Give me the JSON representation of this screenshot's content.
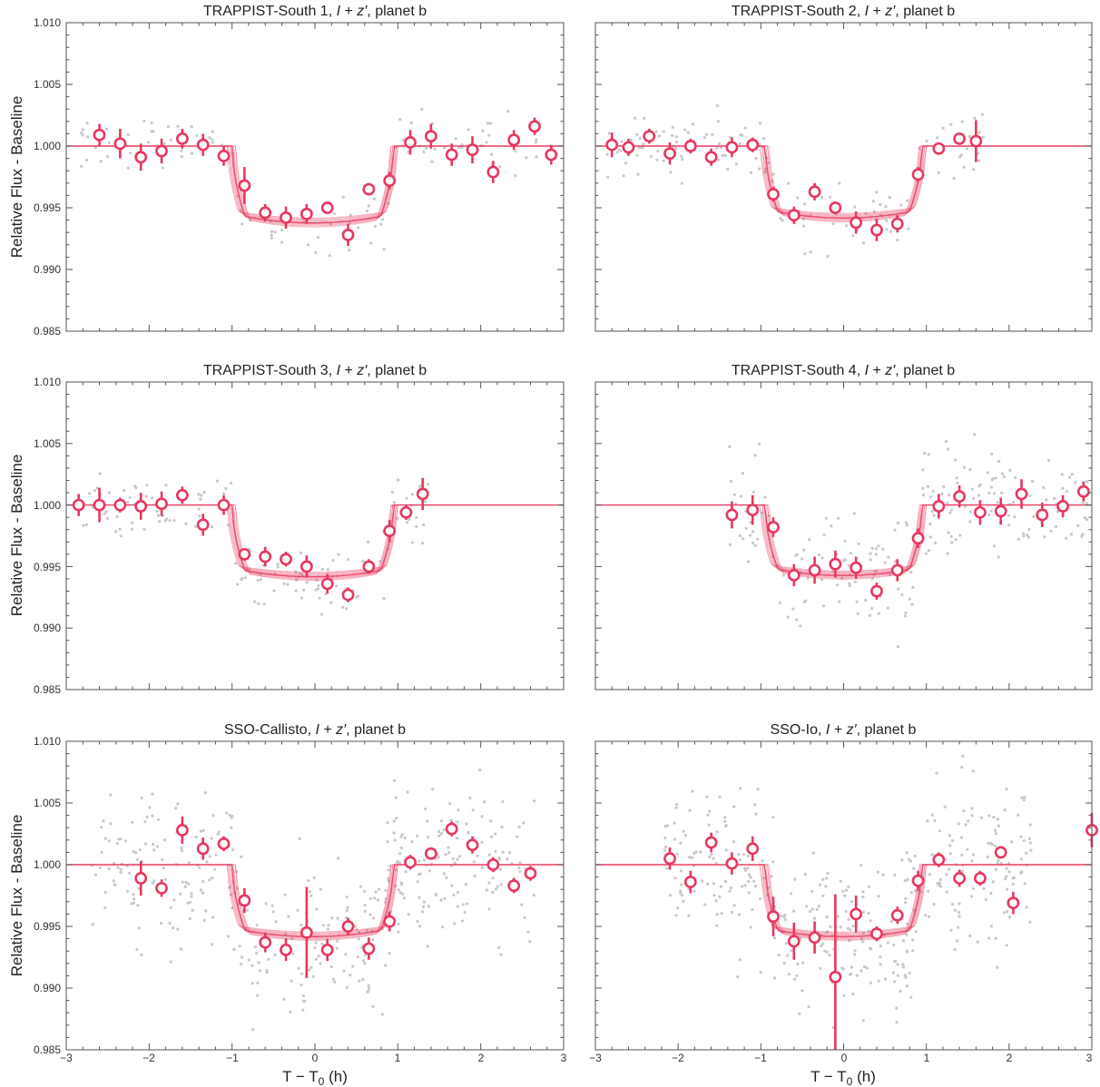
{
  "figure": {
    "ylabel": "Relative Flux - Baseline",
    "xlabel_T": "T",
    "xlabel_minus": "−",
    "xlabel_T0": "T",
    "xlabel_sub0": "0",
    "xlabel_unit": "(h)",
    "accent_color": "#e8375e",
    "scatter_color": "#c8c8c8"
  },
  "chart_data": [
    {
      "type": "scatter",
      "title_prefix": "TRAPPIST-South 1,",
      "title_I": "I",
      "title_plus": "+",
      "title_z": "z′",
      "title_suffix": ", planet b",
      "xlim": [
        -3,
        3
      ],
      "ylim": [
        0.985,
        1.01
      ],
      "x_ticks": [
        -3,
        -2,
        -1,
        0,
        1,
        2,
        3
      ],
      "y_ticks": [
        "0.985",
        "0.990",
        "0.995",
        "1.000",
        "1.005",
        "1.010"
      ],
      "model": {
        "t_ingress": -1.0,
        "t_egress": 0.95,
        "depth": 0.0062
      },
      "binned": {
        "x": [
          -2.6,
          -2.35,
          -2.1,
          -1.85,
          -1.6,
          -1.35,
          -1.1,
          -0.85,
          -0.6,
          -0.35,
          -0.1,
          0.15,
          0.4,
          0.65,
          0.9,
          1.15,
          1.4,
          1.65,
          1.9,
          2.15,
          2.4,
          2.65,
          2.85
        ],
        "y": [
          1.0009,
          1.0002,
          0.9991,
          0.9996,
          1.0006,
          1.0001,
          0.9992,
          0.9968,
          0.9946,
          0.9942,
          0.9945,
          0.995,
          0.9928,
          0.9965,
          0.9972,
          1.0003,
          1.0008,
          0.9993,
          0.9997,
          0.9979,
          1.0005,
          1.0016,
          0.9993
        ],
        "err": [
          0.0009,
          0.0012,
          0.0011,
          0.001,
          0.0008,
          0.0009,
          0.0008,
          0.0015,
          0.0007,
          0.0009,
          0.0008,
          0.0005,
          0.0009,
          0.0005,
          0.0007,
          0.001,
          0.001,
          0.0009,
          0.0011,
          0.0009,
          0.0008,
          0.0007,
          0.0008
        ]
      }
    },
    {
      "type": "scatter",
      "title_prefix": "TRAPPIST-South 2,",
      "title_I": "I",
      "title_plus": "+",
      "title_z": "z′",
      "title_suffix": ", planet b",
      "xlim": [
        -3,
        3
      ],
      "ylim": [
        0.985,
        1.01
      ],
      "x_ticks": [
        -3,
        -2,
        -1,
        0,
        1,
        2,
        3
      ],
      "y_ticks": [
        "0.985",
        "0.990",
        "0.995",
        "1.000",
        "1.005",
        "1.010"
      ],
      "model": {
        "t_ingress": -0.95,
        "t_egress": 0.95,
        "depth": 0.0058
      },
      "binned": {
        "x": [
          -2.8,
          -2.6,
          -2.35,
          -2.1,
          -1.85,
          -1.6,
          -1.35,
          -1.1,
          -0.85,
          -0.6,
          -0.35,
          -0.1,
          0.15,
          0.4,
          0.65,
          0.9,
          1.15,
          1.4,
          1.6
        ],
        "y": [
          1.0001,
          0.9999,
          1.0008,
          0.9994,
          1.0,
          0.9991,
          0.9999,
          1.0001,
          0.9961,
          0.9944,
          0.9963,
          0.995,
          0.9938,
          0.9932,
          0.9937,
          0.9977,
          0.9998,
          1.0006,
          1.0004
        ],
        "err": [
          0.001,
          0.0007,
          0.0006,
          0.0009,
          0.0006,
          0.0007,
          0.0008,
          0.0006,
          0.0006,
          0.0007,
          0.0007,
          0.0005,
          0.0009,
          0.0009,
          0.0007,
          0.0006,
          0.0004,
          0.0005,
          0.0017
        ]
      }
    },
    {
      "type": "scatter",
      "title_prefix": "TRAPPIST-South 3,",
      "title_I": "I",
      "title_plus": "+",
      "title_z": "z′",
      "title_suffix": ", planet b",
      "xlim": [
        -3,
        3
      ],
      "ylim": [
        0.985,
        1.01
      ],
      "x_ticks": [
        -3,
        -2,
        -1,
        0,
        1,
        2,
        3
      ],
      "y_ticks": [
        "0.985",
        "0.990",
        "0.995",
        "1.000",
        "1.005",
        "1.010"
      ],
      "model": {
        "t_ingress": -1.0,
        "t_egress": 0.95,
        "depth": 0.0058
      },
      "binned": {
        "x": [
          -2.85,
          -2.6,
          -2.35,
          -2.1,
          -1.85,
          -1.6,
          -1.35,
          -1.1,
          -0.85,
          -0.6,
          -0.35,
          -0.1,
          0.15,
          0.4,
          0.65,
          0.9,
          1.1,
          1.3
        ],
        "y": [
          1.0,
          1.0,
          1.0,
          0.9999,
          1.0001,
          1.0008,
          0.9984,
          1.0,
          0.996,
          0.9958,
          0.9956,
          0.995,
          0.9936,
          0.9927,
          0.995,
          0.9979,
          0.9994,
          1.0009
        ],
        "err": [
          0.0009,
          0.0014,
          0.0006,
          0.0011,
          0.001,
          0.0007,
          0.0009,
          0.0008,
          0.0005,
          0.0008,
          0.0006,
          0.0009,
          0.0008,
          0.0006,
          0.0006,
          0.0009,
          0.0006,
          0.0013
        ]
      }
    },
    {
      "type": "scatter",
      "title_prefix": "TRAPPIST-South 4,",
      "title_I": "I",
      "title_plus": "+",
      "title_z": "z′",
      "title_suffix": ", planet b",
      "xlim": [
        -3,
        3
      ],
      "ylim": [
        0.985,
        1.01
      ],
      "x_ticks": [
        -3,
        -2,
        -1,
        0,
        1,
        2,
        3
      ],
      "y_ticks": [
        "0.985",
        "0.990",
        "0.995",
        "1.000",
        "1.005",
        "1.010"
      ],
      "model": {
        "t_ingress": -0.95,
        "t_egress": 0.95,
        "depth": 0.0057
      },
      "binned": {
        "x": [
          -1.35,
          -1.1,
          -0.85,
          -0.6,
          -0.35,
          -0.1,
          0.15,
          0.4,
          0.65,
          0.9,
          1.15,
          1.4,
          1.65,
          1.9,
          2.15,
          2.4,
          2.65,
          2.9
        ],
        "y": [
          0.9992,
          0.9996,
          0.9982,
          0.9943,
          0.9947,
          0.9952,
          0.9949,
          0.993,
          0.9947,
          0.9973,
          0.9999,
          1.0007,
          0.9994,
          0.9995,
          1.0009,
          0.9992,
          0.9999,
          1.0011
        ],
        "err": [
          0.0011,
          0.0012,
          0.0008,
          0.0009,
          0.0011,
          0.0011,
          0.0009,
          0.0007,
          0.0009,
          0.0008,
          0.001,
          0.0009,
          0.001,
          0.0011,
          0.0012,
          0.001,
          0.0009,
          0.0008
        ]
      }
    },
    {
      "type": "scatter",
      "title_prefix": "SSO-Callisto,",
      "title_I": "I",
      "title_plus": "+",
      "title_z": "z′",
      "title_suffix": ", planet b",
      "xlim": [
        -3,
        3
      ],
      "ylim": [
        0.985,
        1.01
      ],
      "x_ticks": [
        -3,
        -2,
        -1,
        0,
        1,
        2,
        3
      ],
      "x_tick_labels": [
        "−3",
        "−2",
        "−1",
        "0",
        "1",
        "2",
        "3"
      ],
      "y_ticks": [
        "0.985",
        "0.990",
        "0.995",
        "1.000",
        "1.005",
        "1.010"
      ],
      "model": {
        "t_ingress": -1.0,
        "t_egress": 0.95,
        "depth": 0.0058
      },
      "binned": {
        "x": [
          -2.1,
          -1.85,
          -1.6,
          -1.35,
          -1.1,
          -0.85,
          -0.6,
          -0.35,
          -0.1,
          0.15,
          0.4,
          0.65,
          0.9,
          1.15,
          1.4,
          1.65,
          1.9,
          2.15,
          2.4,
          2.6
        ],
        "y": [
          0.9989,
          0.9981,
          1.0028,
          1.0013,
          1.0017,
          0.9971,
          0.9937,
          0.9931,
          0.9945,
          0.9931,
          0.995,
          0.9932,
          0.9954,
          1.0002,
          1.0009,
          1.0029,
          1.0016,
          1.0,
          0.9983,
          0.9993
        ],
        "err": [
          0.0014,
          0.0007,
          0.0011,
          0.0009,
          0.0006,
          0.001,
          0.0008,
          0.0009,
          0.0037,
          0.0009,
          0.0007,
          0.0009,
          0.0008,
          0.0006,
          0.0005,
          0.0006,
          0.0007,
          0.0006,
          0.0006,
          0.0006
        ]
      }
    },
    {
      "type": "scatter",
      "title_prefix": "SSO-Io,",
      "title_I": "I",
      "title_plus": "+",
      "title_z": "z′",
      "title_suffix": ", planet b",
      "xlim": [
        -3,
        3
      ],
      "ylim": [
        0.985,
        1.01
      ],
      "x_ticks": [
        -3,
        -2,
        -1,
        0,
        1,
        2,
        3
      ],
      "x_tick_labels": [
        "−3",
        "−2",
        "−1",
        "0",
        "1",
        "2",
        "3"
      ],
      "y_ticks": [
        "0.985",
        "0.990",
        "0.995",
        "1.000",
        "1.005",
        "1.010"
      ],
      "model": {
        "t_ingress": -0.95,
        "t_egress": 0.95,
        "depth": 0.0058
      },
      "binned": {
        "x": [
          -2.1,
          -1.85,
          -1.6,
          -1.35,
          -1.1,
          -0.85,
          -0.6,
          -0.35,
          -0.1,
          0.15,
          0.4,
          0.65,
          0.9,
          1.15,
          1.4,
          1.65,
          1.9,
          2.05,
          3.0
        ],
        "y": [
          1.0005,
          0.9986,
          1.0018,
          1.0001,
          1.0013,
          0.9958,
          0.9938,
          0.9941,
          0.9909,
          0.996,
          0.9944,
          0.9959,
          0.9987,
          1.0004,
          0.9989,
          0.9989,
          1.001,
          0.9969,
          1.0028
        ],
        "err": [
          0.0009,
          0.0009,
          0.0008,
          0.0009,
          0.001,
          0.0016,
          0.0015,
          0.0013,
          0.0067,
          0.0015,
          0.0006,
          0.0007,
          0.0008,
          0.0006,
          0.0007,
          0.0006,
          0.0005,
          0.0009,
          0.0014
        ]
      }
    }
  ]
}
